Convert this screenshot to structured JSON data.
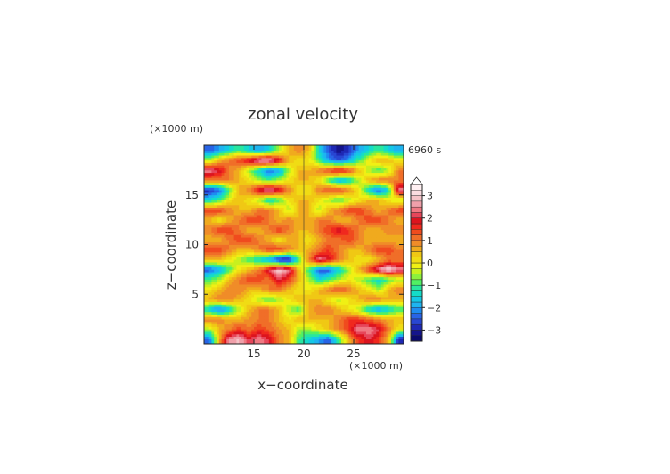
{
  "chart_data": {
    "type": "heatmap",
    "title": "zonal velocity",
    "time_label": "6960 s",
    "xlabel": "x−coordinate",
    "ylabel": "z−coordinate",
    "x_unit": "(×1000 m)",
    "y_unit": "(×1000 m)",
    "xlim": [
      10,
      30
    ],
    "ylim": [
      0,
      20
    ],
    "x_ticks": [
      15,
      20,
      25
    ],
    "y_ticks": [
      5,
      10,
      15
    ],
    "x_tick_labels": [
      "15",
      "20",
      "25"
    ],
    "y_tick_labels": [
      "5",
      "10",
      "15"
    ],
    "colorbar": {
      "levels": [
        -3.5,
        -3.25,
        -3,
        -2.75,
        -2.5,
        -2.25,
        -2,
        -1.75,
        -1.5,
        -1.25,
        -1,
        -0.75,
        -0.5,
        -0.25,
        0,
        0.25,
        0.5,
        0.75,
        1,
        1.25,
        1.5,
        1.75,
        2,
        2.25,
        2.5,
        2.75,
        3,
        3.25,
        3.5
      ],
      "colors": [
        "#0a0a6e",
        "#14148c",
        "#1e28b4",
        "#2846d2",
        "#2864e6",
        "#1e8cf0",
        "#1eb4f0",
        "#14c8e6",
        "#14dcc8",
        "#28e6a0",
        "#50f064",
        "#8cf03c",
        "#c8f01e",
        "#f0f014",
        "#f0dc14",
        "#f0c814",
        "#f0aa1e",
        "#f08c28",
        "#f06e28",
        "#f04b1e",
        "#f0281e",
        "#dc141e",
        "#e6465a",
        "#f07882",
        "#f0a0aa",
        "#f5c3c8",
        "#fadce0",
        "#fff0f2"
      ],
      "tick_values": [
        3,
        2,
        1,
        0,
        -1,
        -2,
        -3
      ],
      "tick_labels": [
        "3",
        "2",
        "1",
        "0",
        "−1",
        "−2",
        "−3"
      ],
      "extend": "max"
    },
    "field": {
      "description_of_values": "zonal velocity (m/s) on a 20x20 grid, rows ordered from z=0 (bottom) to z=20 (top), columns x=10..30",
      "x": [
        10.5,
        11.5,
        12.5,
        13.5,
        14.5,
        15.5,
        16.5,
        17.5,
        18.5,
        19.5,
        20.5,
        21.5,
        22.5,
        23.5,
        24.5,
        25.5,
        26.5,
        27.5,
        28.5,
        29.5
      ],
      "z": [
        0.5,
        1.5,
        2.5,
        3.5,
        4.5,
        5.5,
        6.5,
        7.5,
        8.5,
        9.5,
        10.5,
        11.5,
        12.5,
        13.5,
        14.5,
        15.5,
        16.5,
        17.5,
        18.5,
        19.5
      ],
      "values": [
        [
          -2.5,
          0.5,
          2.5,
          2.8,
          2.0,
          2.5,
          2.0,
          1.0,
          0.5,
          -1.0,
          -1.5,
          -2.0,
          -2.5,
          -1.0,
          0.5,
          1.5,
          2.0,
          1.5,
          0.5,
          -3.0
        ],
        [
          -0.5,
          0.5,
          1.0,
          1.5,
          1.0,
          1.5,
          1.2,
          0.8,
          0.5,
          -0.5,
          -0.5,
          0.0,
          0.5,
          1.0,
          1.5,
          2.5,
          2.5,
          2.0,
          1.0,
          0.0
        ],
        [
          1.0,
          1.0,
          0.5,
          0.5,
          0.8,
          1.0,
          1.0,
          0.5,
          0.0,
          0.5,
          0.5,
          0.5,
          0.5,
          1.0,
          1.5,
          1.5,
          1.2,
          1.0,
          0.5,
          0.5
        ],
        [
          -1.5,
          -2.5,
          -1.5,
          -0.5,
          0.5,
          1.0,
          1.0,
          0.5,
          -0.5,
          -1.0,
          0.5,
          1.0,
          1.0,
          0.5,
          0.0,
          -0.5,
          -1.5,
          -2.0,
          -1.5,
          -1.0
        ],
        [
          0.5,
          1.0,
          1.0,
          0.5,
          0.0,
          -0.5,
          -1.0,
          -0.5,
          0.0,
          0.5,
          0.5,
          0.5,
          0.0,
          -0.5,
          0.0,
          0.5,
          1.0,
          1.0,
          0.5,
          0.5
        ],
        [
          0.0,
          0.5,
          1.0,
          1.0,
          0.5,
          0.5,
          1.0,
          1.0,
          0.5,
          0.0,
          0.0,
          0.5,
          1.0,
          1.5,
          1.0,
          0.5,
          0.0,
          -0.5,
          0.5,
          1.0
        ],
        [
          -1.0,
          -0.5,
          0.5,
          1.0,
          1.5,
          1.5,
          1.0,
          2.0,
          1.5,
          0.5,
          -0.5,
          -1.5,
          -1.0,
          -0.5,
          0.0,
          -0.5,
          -1.0,
          -1.5,
          -1.0,
          -0.5
        ],
        [
          -2.5,
          -2.0,
          -1.0,
          0.0,
          0.5,
          1.0,
          2.0,
          3.0,
          2.5,
          0.5,
          -1.0,
          -2.5,
          -2.5,
          -1.5,
          -0.5,
          0.5,
          1.5,
          2.5,
          3.2,
          2.5
        ],
        [
          0.5,
          0.5,
          0.0,
          -0.5,
          -1.0,
          -1.5,
          -2.0,
          -3.0,
          -3.2,
          -1.0,
          1.0,
          2.5,
          2.0,
          1.0,
          0.5,
          0.0,
          0.0,
          0.5,
          1.0,
          1.0
        ],
        [
          1.5,
          1.5,
          1.0,
          0.5,
          0.5,
          1.0,
          1.5,
          1.5,
          1.0,
          0.5,
          0.5,
          1.0,
          1.5,
          1.0,
          0.5,
          0.5,
          1.0,
          1.5,
          1.5,
          1.0
        ],
        [
          0.5,
          0.5,
          1.0,
          1.5,
          1.5,
          1.0,
          0.5,
          0.0,
          0.5,
          0.5,
          0.0,
          0.5,
          1.0,
          1.0,
          1.5,
          1.0,
          0.5,
          0.5,
          0.5,
          0.5
        ],
        [
          1.0,
          1.5,
          1.5,
          1.0,
          0.5,
          0.5,
          1.0,
          1.5,
          1.0,
          0.5,
          0.5,
          1.0,
          1.5,
          2.0,
          1.5,
          1.0,
          0.5,
          0.5,
          1.0,
          1.0
        ],
        [
          0.5,
          0.0,
          0.5,
          1.0,
          1.5,
          1.5,
          1.0,
          0.5,
          1.0,
          0.5,
          0.5,
          1.0,
          1.0,
          0.5,
          0.5,
          1.0,
          1.5,
          1.5,
          1.0,
          0.5
        ],
        [
          1.5,
          1.5,
          1.0,
          0.5,
          0.5,
          1.0,
          1.0,
          0.5,
          -0.5,
          0.5,
          0.5,
          -0.5,
          0.5,
          1.0,
          1.5,
          1.5,
          1.0,
          0.5,
          1.0,
          1.5
        ],
        [
          -1.5,
          -1.0,
          0.0,
          0.5,
          0.0,
          -0.5,
          -1.5,
          -1.0,
          0.0,
          0.5,
          0.5,
          0.0,
          -0.5,
          -1.0,
          -0.5,
          0.0,
          0.5,
          0.5,
          0.0,
          -0.5
        ],
        [
          -3.0,
          -2.5,
          -1.0,
          0.5,
          1.0,
          2.0,
          2.8,
          2.0,
          1.0,
          0.0,
          0.0,
          1.0,
          1.5,
          1.5,
          1.0,
          0.0,
          -1.5,
          -2.5,
          -1.5,
          2.5
        ],
        [
          1.0,
          1.0,
          1.0,
          0.5,
          0.0,
          -0.5,
          -1.0,
          -0.5,
          0.0,
          0.5,
          0.5,
          0.0,
          -1.0,
          -2.0,
          -1.5,
          -0.5,
          0.5,
          1.0,
          1.0,
          1.0
        ],
        [
          2.5,
          2.0,
          1.0,
          0.5,
          -0.5,
          -1.5,
          -2.5,
          -2.0,
          -0.5,
          0.5,
          0.5,
          1.0,
          1.5,
          2.0,
          1.5,
          0.5,
          -0.5,
          -1.0,
          -0.5,
          1.0
        ],
        [
          -0.5,
          0.5,
          1.0,
          1.5,
          2.0,
          2.8,
          3.0,
          2.0,
          0.5,
          0.0,
          0.0,
          -1.0,
          -2.0,
          -2.5,
          -2.0,
          -1.0,
          0.0,
          0.5,
          0.5,
          0.0
        ],
        [
          -2.5,
          -2.0,
          -1.5,
          -1.0,
          -1.5,
          -2.0,
          -1.5,
          -0.5,
          0.5,
          1.0,
          0.5,
          -1.5,
          -2.5,
          -3.2,
          -2.8,
          -2.0,
          -1.5,
          -1.0,
          -1.5,
          -2.0
        ]
      ]
    }
  }
}
